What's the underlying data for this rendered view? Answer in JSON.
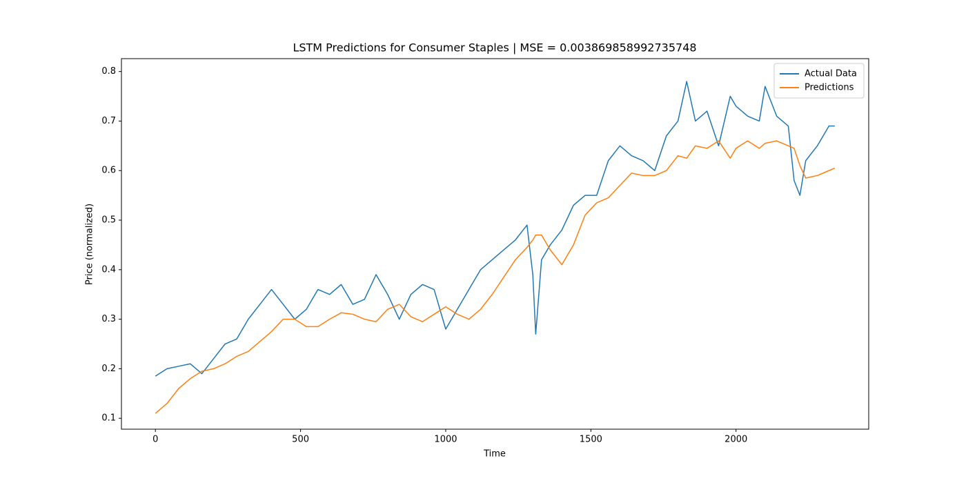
{
  "chart_data": {
    "type": "line",
    "title": "LSTM Predictions for Consumer Staples | MSE = 0.003869858992735748",
    "x_label": "Time",
    "y_label": "Price (normalized)",
    "x": [
      0,
      40,
      80,
      120,
      160,
      200,
      240,
      280,
      320,
      360,
      400,
      440,
      480,
      520,
      560,
      600,
      640,
      680,
      720,
      760,
      800,
      840,
      880,
      920,
      960,
      1000,
      1040,
      1080,
      1120,
      1160,
      1200,
      1240,
      1280,
      1300,
      1310,
      1330,
      1360,
      1400,
      1440,
      1480,
      1520,
      1560,
      1600,
      1640,
      1680,
      1720,
      1760,
      1800,
      1830,
      1860,
      1900,
      1940,
      1980,
      2000,
      2040,
      2080,
      2100,
      2140,
      2180,
      2200,
      2220,
      2240,
      2280,
      2320,
      2340
    ],
    "series": [
      {
        "name": "Actual Data",
        "color": "#1f77b4",
        "values": [
          0.185,
          0.2,
          0.205,
          0.21,
          0.19,
          0.22,
          0.25,
          0.26,
          0.3,
          0.33,
          0.36,
          0.33,
          0.3,
          0.32,
          0.36,
          0.35,
          0.37,
          0.33,
          0.34,
          0.39,
          0.35,
          0.3,
          0.35,
          0.37,
          0.36,
          0.28,
          0.32,
          0.36,
          0.4,
          0.42,
          0.44,
          0.46,
          0.49,
          0.39,
          0.27,
          0.42,
          0.45,
          0.48,
          0.53,
          0.55,
          0.55,
          0.62,
          0.65,
          0.63,
          0.62,
          0.6,
          0.67,
          0.7,
          0.78,
          0.7,
          0.72,
          0.65,
          0.75,
          0.73,
          0.71,
          0.7,
          0.77,
          0.71,
          0.69,
          0.58,
          0.55,
          0.62,
          0.65,
          0.69,
          0.69
        ]
      },
      {
        "name": "Predictions",
        "color": "#ff7f0e",
        "values": [
          0.11,
          0.13,
          0.16,
          0.18,
          0.195,
          0.2,
          0.21,
          0.225,
          0.235,
          0.255,
          0.275,
          0.3,
          0.3,
          0.285,
          0.285,
          0.3,
          0.313,
          0.31,
          0.3,
          0.295,
          0.32,
          0.33,
          0.305,
          0.295,
          0.31,
          0.325,
          0.31,
          0.3,
          0.32,
          0.35,
          0.385,
          0.42,
          0.445,
          0.46,
          0.47,
          0.47,
          0.44,
          0.41,
          0.45,
          0.51,
          0.535,
          0.545,
          0.57,
          0.595,
          0.59,
          0.59,
          0.6,
          0.63,
          0.625,
          0.65,
          0.645,
          0.66,
          0.625,
          0.645,
          0.66,
          0.645,
          0.655,
          0.66,
          0.65,
          0.645,
          0.61,
          0.585,
          0.59,
          0.6,
          0.605
        ]
      }
    ],
    "xlim": [
      -117,
      2457
    ],
    "xticks": [
      0,
      500,
      1000,
      1500,
      2000
    ],
    "ylim": [
      0.078,
      0.826
    ],
    "yticks": [
      0.1,
      0.2,
      0.3,
      0.4,
      0.5,
      0.6,
      0.7,
      0.8
    ],
    "legend": "upper right",
    "grid": false
  }
}
